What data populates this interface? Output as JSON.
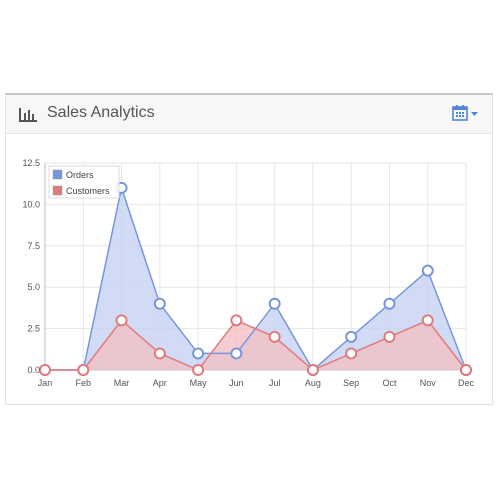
{
  "panel": {
    "title": "Sales Analytics",
    "title_icon": "bar-chart-icon",
    "action_icon": "calendar-dropdown-icon",
    "accent": "#5b8bd9"
  },
  "chart_data": {
    "type": "area",
    "categories": [
      "Jan",
      "Feb",
      "Mar",
      "Apr",
      "May",
      "Jun",
      "Jul",
      "Aug",
      "Sep",
      "Oct",
      "Nov",
      "Dec"
    ],
    "series": [
      {
        "name": "Orders",
        "values": [
          0,
          0,
          11,
          4,
          1,
          1,
          4,
          0,
          2,
          4,
          6,
          0
        ],
        "color": "#7895dc",
        "fill": "#c6d2f2"
      },
      {
        "name": "Customers",
        "values": [
          0,
          0,
          3,
          1,
          0,
          3,
          2,
          0,
          1,
          2,
          3,
          0
        ],
        "color": "#e07b7b",
        "fill": "#f3c0c4"
      }
    ],
    "yticks": [
      "0.0",
      "2.5",
      "5.0",
      "7.5",
      "10.0",
      "12.5"
    ],
    "ylim": [
      0,
      12.5
    ],
    "grid": true,
    "legend": "top-left"
  }
}
